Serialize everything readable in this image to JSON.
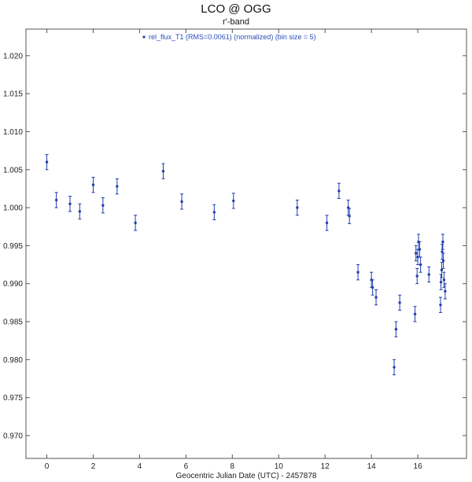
{
  "chart_data": {
    "type": "scatter",
    "title": "LCO @ OGG",
    "subtitle": "r'-band",
    "xlabel": "Geocentric Julian Date (UTC) - 2457878",
    "ylabel": "",
    "xlim": [
      -0.9,
      18.1
    ],
    "ylim": [
      0.967,
      1.0235
    ],
    "x_ticks": [
      0,
      2,
      4,
      6,
      8,
      10,
      12,
      14,
      16
    ],
    "y_ticks": [
      0.97,
      0.975,
      0.98,
      0.985,
      0.99,
      0.995,
      1.0,
      1.005,
      1.01,
      1.015,
      1.02
    ],
    "y_tick_labels": [
      "0.970",
      "0.975",
      "0.980",
      "0.985",
      "0.990",
      "0.995",
      "1.000",
      "1.005",
      "1.010",
      "1.015",
      "1.020"
    ],
    "grid": false,
    "legend_position": "top-center",
    "series": [
      {
        "name": "rel_flux_T1 (RMS=0.0061) (normalized) (bin size = 5)",
        "color": "#1f3fae",
        "x": [
          0.0,
          0.41,
          1.0,
          1.42,
          2.0,
          2.42,
          3.03,
          3.82,
          5.02,
          5.82,
          7.22,
          8.05,
          10.8,
          12.08,
          12.6,
          13.0,
          13.05,
          13.42,
          14.0,
          14.05,
          14.2,
          14.98,
          15.06,
          15.22,
          15.88,
          15.92,
          15.97,
          16.0,
          16.03,
          16.08,
          16.12,
          16.48,
          16.98,
          17.0,
          17.03,
          17.05,
          17.08,
          17.1,
          17.13,
          17.18
        ],
        "y": [
          1.006,
          1.001,
          1.0005,
          0.9995,
          1.003,
          1.0003,
          1.0028,
          0.998,
          1.0048,
          1.0008,
          0.9994,
          1.0009,
          1.0,
          0.998,
          1.0022,
          1.0,
          0.9989,
          0.9915,
          0.9905,
          0.9895,
          0.9882,
          0.979,
          0.984,
          0.9875,
          0.986,
          0.994,
          0.991,
          0.9935,
          0.9955,
          0.9945,
          0.9925,
          0.9912,
          0.9872,
          0.9902,
          0.9918,
          0.9942,
          0.9955,
          0.993,
          0.9905,
          0.989
        ],
        "yerr": [
          0.001,
          0.001,
          0.001,
          0.001,
          0.001,
          0.001,
          0.001,
          0.001,
          0.001,
          0.001,
          0.001,
          0.001,
          0.001,
          0.001,
          0.001,
          0.001,
          0.001,
          0.001,
          0.001,
          0.001,
          0.001,
          0.001,
          0.001,
          0.001,
          0.001,
          0.001,
          0.001,
          0.001,
          0.001,
          0.001,
          0.001,
          0.001,
          0.001,
          0.001,
          0.001,
          0.001,
          0.001,
          0.001,
          0.001,
          0.001
        ]
      }
    ]
  }
}
